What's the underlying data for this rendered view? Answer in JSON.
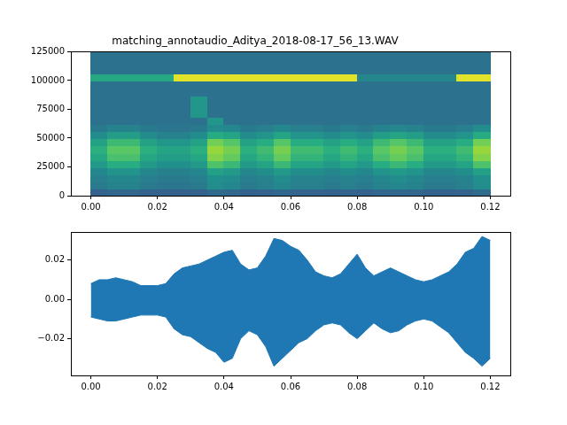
{
  "chart_data": [
    {
      "type": "heatmap",
      "title": "matching_annotaudio_Aditya_2018-08-17_56_13.WAV",
      "x": [
        0.0025,
        0.0075,
        0.0125,
        0.0175,
        0.0225,
        0.0275,
        0.0325,
        0.0375,
        0.0425,
        0.0475,
        0.0525,
        0.0575,
        0.0625,
        0.0675,
        0.0725,
        0.0775,
        0.0825,
        0.0875,
        0.0925,
        0.0975,
        0.1025,
        0.1075,
        0.1125,
        0.1175
      ],
      "y": [
        3125,
        9375,
        15625,
        21875,
        28125,
        34375,
        40625,
        46875,
        53125,
        59375,
        65625,
        71875,
        78125,
        84375,
        90625,
        96875,
        103125,
        109375,
        115625,
        121875
      ],
      "cells": [
        [
          0.21,
          0.23,
          0.23,
          0.21,
          0.2,
          0.2,
          0.21,
          0.25,
          0.24,
          0.21,
          0.22,
          0.24,
          0.22,
          0.22,
          0.21,
          0.22,
          0.21,
          0.23,
          0.24,
          0.23,
          0.21,
          0.21,
          0.22,
          0.25
        ],
        [
          0.32,
          0.36,
          0.36,
          0.32,
          0.3,
          0.3,
          0.32,
          0.4,
          0.38,
          0.32,
          0.34,
          0.38,
          0.34,
          0.34,
          0.32,
          0.34,
          0.32,
          0.36,
          0.38,
          0.36,
          0.32,
          0.32,
          0.34,
          0.4
        ],
        [
          0.34,
          0.38,
          0.38,
          0.34,
          0.32,
          0.32,
          0.34,
          0.42,
          0.4,
          0.34,
          0.36,
          0.4,
          0.36,
          0.36,
          0.34,
          0.36,
          0.34,
          0.38,
          0.4,
          0.38,
          0.34,
          0.34,
          0.36,
          0.42
        ],
        [
          0.38,
          0.44,
          0.44,
          0.38,
          0.35,
          0.35,
          0.38,
          0.5,
          0.47,
          0.38,
          0.41,
          0.47,
          0.41,
          0.41,
          0.38,
          0.41,
          0.38,
          0.44,
          0.47,
          0.44,
          0.38,
          0.38,
          0.41,
          0.5
        ],
        [
          0.47,
          0.57,
          0.57,
          0.47,
          0.42,
          0.42,
          0.47,
          0.67,
          0.62,
          0.47,
          0.52,
          0.62,
          0.52,
          0.52,
          0.47,
          0.52,
          0.47,
          0.57,
          0.62,
          0.57,
          0.47,
          0.47,
          0.52,
          0.67
        ],
        [
          0.54,
          0.66,
          0.66,
          0.54,
          0.48,
          0.48,
          0.54,
          0.78,
          0.72,
          0.54,
          0.6,
          0.72,
          0.6,
          0.6,
          0.54,
          0.6,
          0.54,
          0.66,
          0.72,
          0.66,
          0.54,
          0.54,
          0.6,
          0.78
        ],
        [
          0.58,
          0.7,
          0.7,
          0.58,
          0.52,
          0.52,
          0.58,
          0.82,
          0.76,
          0.58,
          0.64,
          0.76,
          0.64,
          0.64,
          0.58,
          0.64,
          0.58,
          0.7,
          0.76,
          0.7,
          0.58,
          0.58,
          0.64,
          0.82
        ],
        [
          0.51,
          0.63,
          0.63,
          0.51,
          0.45,
          0.45,
          0.51,
          0.75,
          0.69,
          0.51,
          0.57,
          0.69,
          0.57,
          0.57,
          0.51,
          0.57,
          0.51,
          0.63,
          0.69,
          0.63,
          0.51,
          0.51,
          0.57,
          0.75
        ],
        [
          0.4,
          0.48,
          0.48,
          0.4,
          0.36,
          0.36,
          0.4,
          0.56,
          0.52,
          0.4,
          0.44,
          0.52,
          0.44,
          0.44,
          0.4,
          0.44,
          0.4,
          0.48,
          0.52,
          0.48,
          0.4,
          0.4,
          0.44,
          0.56
        ],
        [
          0.32,
          0.36,
          0.36,
          0.32,
          0.3,
          0.3,
          0.32,
          0.4,
          0.38,
          0.32,
          0.34,
          0.38,
          0.34,
          0.34,
          0.32,
          0.34,
          0.32,
          0.36,
          0.38,
          0.36,
          0.32,
          0.32,
          0.34,
          0.4
        ],
        [
          0.28,
          0.28,
          0.28,
          0.28,
          0.28,
          0.28,
          0.28,
          0.45,
          0.28,
          0.28,
          0.28,
          0.28,
          0.28,
          0.28,
          0.28,
          0.28,
          0.28,
          0.28,
          0.28,
          0.28,
          0.28,
          0.28,
          0.28,
          0.28
        ],
        [
          0.28,
          0.28,
          0.28,
          0.28,
          0.28,
          0.28,
          0.45,
          0.28,
          0.28,
          0.28,
          0.28,
          0.28,
          0.28,
          0.28,
          0.28,
          0.28,
          0.28,
          0.28,
          0.28,
          0.28,
          0.28,
          0.28,
          0.28,
          0.28
        ],
        [
          0.28,
          0.28,
          0.28,
          0.28,
          0.28,
          0.28,
          0.45,
          0.28,
          0.28,
          0.28,
          0.28,
          0.28,
          0.28,
          0.28,
          0.28,
          0.28,
          0.28,
          0.28,
          0.28,
          0.28,
          0.28,
          0.28,
          0.28,
          0.28
        ],
        [
          0.28,
          0.28,
          0.28,
          0.28,
          0.28,
          0.28,
          0.45,
          0.28,
          0.28,
          0.28,
          0.28,
          0.28,
          0.28,
          0.28,
          0.28,
          0.28,
          0.28,
          0.28,
          0.28,
          0.28,
          0.28,
          0.28,
          0.28,
          0.28
        ],
        [
          0.28,
          0.28,
          0.28,
          0.28,
          0.28,
          0.28,
          0.28,
          0.28,
          0.28,
          0.28,
          0.28,
          0.28,
          0.28,
          0.28,
          0.28,
          0.28,
          0.28,
          0.28,
          0.28,
          0.28,
          0.28,
          0.28,
          0.28,
          0.28
        ],
        [
          0.28,
          0.28,
          0.28,
          0.28,
          0.28,
          0.28,
          0.28,
          0.28,
          0.28,
          0.28,
          0.28,
          0.28,
          0.28,
          0.28,
          0.28,
          0.28,
          0.28,
          0.28,
          0.28,
          0.28,
          0.28,
          0.28,
          0.28,
          0.28
        ],
        [
          0.55,
          0.55,
          0.55,
          0.55,
          0.55,
          0.95,
          0.95,
          0.95,
          0.95,
          0.95,
          0.95,
          0.95,
          0.95,
          0.95,
          0.95,
          0.95,
          0.38,
          0.38,
          0.38,
          0.38,
          0.38,
          0.38,
          0.95,
          0.95
        ],
        [
          0.28,
          0.28,
          0.28,
          0.28,
          0.28,
          0.28,
          0.28,
          0.28,
          0.28,
          0.28,
          0.28,
          0.28,
          0.28,
          0.28,
          0.28,
          0.28,
          0.28,
          0.28,
          0.28,
          0.28,
          0.28,
          0.28,
          0.28,
          0.28
        ],
        [
          0.28,
          0.28,
          0.28,
          0.28,
          0.28,
          0.28,
          0.28,
          0.28,
          0.28,
          0.28,
          0.28,
          0.28,
          0.28,
          0.28,
          0.28,
          0.28,
          0.28,
          0.28,
          0.28,
          0.28,
          0.28,
          0.28,
          0.28,
          0.28
        ],
        [
          0.28,
          0.28,
          0.28,
          0.28,
          0.28,
          0.28,
          0.28,
          0.28,
          0.28,
          0.28,
          0.28,
          0.28,
          0.28,
          0.28,
          0.28,
          0.28,
          0.28,
          0.28,
          0.28,
          0.28,
          0.28,
          0.28,
          0.28,
          0.28
        ]
      ],
      "zlim": [
        -0.15,
        1
      ],
      "xlim": [
        -0.006,
        0.126
      ],
      "xticks": [
        {
          "value": 0,
          "label": "0.00"
        },
        {
          "value": 0.02,
          "label": "0.02"
        },
        {
          "value": 0.04,
          "label": "0.04"
        },
        {
          "value": 0.06,
          "label": "0.06"
        },
        {
          "value": 0.08,
          "label": "0.08"
        },
        {
          "value": 0.1,
          "label": "0.10"
        },
        {
          "value": 0.12,
          "label": "0.12"
        }
      ],
      "ylim": [
        0,
        125000
      ],
      "yticks": [
        0,
        25000,
        50000,
        75000,
        100000,
        125000
      ],
      "grid": false
    },
    {
      "type": "area",
      "x": [
        0,
        0.0025,
        0.005,
        0.0075,
        0.01,
        0.0125,
        0.015,
        0.0175,
        0.02,
        0.0225,
        0.025,
        0.0275,
        0.03,
        0.0325,
        0.035,
        0.0375,
        0.04,
        0.0425,
        0.045,
        0.0475,
        0.05,
        0.0525,
        0.055,
        0.0575,
        0.06,
        0.0625,
        0.065,
        0.0675,
        0.07,
        0.0725,
        0.075,
        0.0775,
        0.08,
        0.0825,
        0.085,
        0.0875,
        0.09,
        0.0925,
        0.095,
        0.0975,
        0.1,
        0.1025,
        0.105,
        0.1075,
        0.11,
        0.1125,
        0.115,
        0.1175,
        0.12
      ],
      "series": [
        {
          "color": "#1f77b4",
          "values": [
            0.008,
            0.01,
            0.01,
            0.011,
            0.01,
            0.009,
            0.007,
            0.007,
            0.007,
            0.008,
            0.013,
            0.016,
            0.017,
            0.018,
            0.02,
            0.022,
            0.024,
            0.025,
            0.018,
            0.015,
            0.016,
            0.022,
            0.031,
            0.03,
            0.027,
            0.025,
            0.02,
            0.014,
            0.012,
            0.011,
            0.013,
            0.018,
            0.023,
            0.016,
            0.012,
            0.014,
            0.016,
            0.014,
            0.012,
            0.01,
            0.009,
            0.01,
            0.012,
            0.014,
            0.018,
            0.024,
            0.026,
            0.032,
            0.03
          ]
        },
        {
          "color": "#1f77b4",
          "values": [
            -0.009,
            -0.01,
            -0.011,
            -0.011,
            -0.01,
            -0.009,
            -0.008,
            -0.008,
            -0.008,
            -0.009,
            -0.015,
            -0.018,
            -0.019,
            -0.022,
            -0.025,
            -0.027,
            -0.032,
            -0.03,
            -0.02,
            -0.016,
            -0.018,
            -0.024,
            -0.034,
            -0.03,
            -0.026,
            -0.022,
            -0.02,
            -0.016,
            -0.013,
            -0.012,
            -0.013,
            -0.017,
            -0.02,
            -0.016,
            -0.012,
            -0.015,
            -0.017,
            -0.016,
            -0.013,
            -0.011,
            -0.01,
            -0.011,
            -0.014,
            -0.017,
            -0.022,
            -0.027,
            -0.03,
            -0.034,
            -0.03
          ]
        }
      ],
      "xlim": [
        -0.006,
        0.126
      ],
      "xticks": [
        {
          "value": 0,
          "label": "0.00"
        },
        {
          "value": 0.02,
          "label": "0.02"
        },
        {
          "value": 0.04,
          "label": "0.04"
        },
        {
          "value": 0.06,
          "label": "0.06"
        },
        {
          "value": 0.08,
          "label": "0.08"
        },
        {
          "value": 0.1,
          "label": "0.10"
        },
        {
          "value": 0.12,
          "label": "0.12"
        }
      ],
      "ylim": [
        -0.0387,
        0.0343
      ],
      "yticks": [
        {
          "value": -0.02,
          "label": "−0.02"
        },
        {
          "value": 0,
          "label": "0.00"
        },
        {
          "value": 0.02,
          "label": "0.02"
        }
      ],
      "grid": false
    }
  ]
}
